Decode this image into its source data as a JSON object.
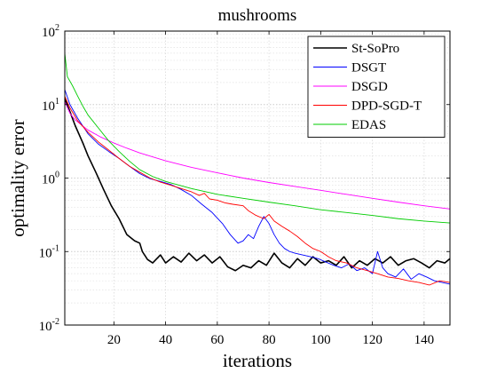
{
  "chart_data": {
    "type": "line",
    "title": "mushrooms",
    "xlabel": "iterations",
    "ylabel": "optimality error",
    "xlim": [
      1,
      150
    ],
    "ylim": [
      0.01,
      100
    ],
    "yscale": "log",
    "grid": "on (with minor log grid)",
    "legend_position": "top-right",
    "x_ticks": [
      20,
      40,
      60,
      80,
      100,
      120,
      140
    ],
    "y_ticks": [
      {
        "base": "10",
        "exp": "-2",
        "value": 0.01
      },
      {
        "base": "10",
        "exp": "-1",
        "value": 0.1
      },
      {
        "base": "10",
        "exp": "0",
        "value": 1
      },
      {
        "base": "10",
        "exp": "1",
        "value": 10
      },
      {
        "base": "10",
        "exp": "2",
        "value": 100
      }
    ],
    "series": [
      {
        "name": "St-SoPro",
        "color": "#000000",
        "points": [
          [
            1,
            12
          ],
          [
            3,
            8
          ],
          [
            5,
            5.2
          ],
          [
            8,
            3.0
          ],
          [
            10,
            2.0
          ],
          [
            13,
            1.2
          ],
          [
            16,
            0.7
          ],
          [
            19,
            0.42
          ],
          [
            22,
            0.28
          ],
          [
            25,
            0.17
          ],
          [
            28,
            0.14
          ],
          [
            30,
            0.13
          ],
          [
            31,
            0.1
          ],
          [
            33,
            0.078
          ],
          [
            35,
            0.07
          ],
          [
            38,
            0.09
          ],
          [
            40,
            0.07
          ],
          [
            43,
            0.085
          ],
          [
            46,
            0.072
          ],
          [
            49,
            0.095
          ],
          [
            52,
            0.075
          ],
          [
            55,
            0.09
          ],
          [
            58,
            0.07
          ],
          [
            61,
            0.085
          ],
          [
            64,
            0.062
          ],
          [
            67,
            0.055
          ],
          [
            70,
            0.065
          ],
          [
            73,
            0.06
          ],
          [
            76,
            0.075
          ],
          [
            79,
            0.065
          ],
          [
            82,
            0.095
          ],
          [
            85,
            0.07
          ],
          [
            88,
            0.06
          ],
          [
            91,
            0.08
          ],
          [
            94,
            0.065
          ],
          [
            97,
            0.085
          ],
          [
            100,
            0.07
          ],
          [
            103,
            0.075
          ],
          [
            106,
            0.065
          ],
          [
            109,
            0.085
          ],
          [
            112,
            0.06
          ],
          [
            115,
            0.075
          ],
          [
            118,
            0.065
          ],
          [
            121,
            0.08
          ],
          [
            124,
            0.07
          ],
          [
            127,
            0.085
          ],
          [
            130,
            0.065
          ],
          [
            133,
            0.075
          ],
          [
            136,
            0.08
          ],
          [
            139,
            0.07
          ],
          [
            142,
            0.06
          ],
          [
            145,
            0.075
          ],
          [
            148,
            0.07
          ],
          [
            150,
            0.08
          ]
        ]
      },
      {
        "name": "DSGT",
        "color": "#0000ff",
        "points": [
          [
            1,
            16
          ],
          [
            3,
            10
          ],
          [
            6,
            6.5
          ],
          [
            10,
            4.0
          ],
          [
            14,
            2.9
          ],
          [
            18,
            2.3
          ],
          [
            22,
            1.85
          ],
          [
            26,
            1.45
          ],
          [
            30,
            1.15
          ],
          [
            34,
            0.98
          ],
          [
            38,
            0.9
          ],
          [
            42,
            0.82
          ],
          [
            46,
            0.7
          ],
          [
            50,
            0.58
          ],
          [
            54,
            0.44
          ],
          [
            58,
            0.34
          ],
          [
            62,
            0.24
          ],
          [
            65,
            0.17
          ],
          [
            68,
            0.13
          ],
          [
            70,
            0.14
          ],
          [
            72,
            0.17
          ],
          [
            74,
            0.15
          ],
          [
            76,
            0.22
          ],
          [
            78,
            0.3
          ],
          [
            80,
            0.24
          ],
          [
            82,
            0.17
          ],
          [
            84,
            0.13
          ],
          [
            86,
            0.11
          ],
          [
            88,
            0.1
          ],
          [
            90,
            0.095
          ],
          [
            93,
            0.09
          ],
          [
            96,
            0.085
          ],
          [
            99,
            0.08
          ],
          [
            102,
            0.072
          ],
          [
            105,
            0.065
          ],
          [
            108,
            0.06
          ],
          [
            111,
            0.068
          ],
          [
            114,
            0.055
          ],
          [
            117,
            0.06
          ],
          [
            120,
            0.05
          ],
          [
            122,
            0.1
          ],
          [
            124,
            0.06
          ],
          [
            126,
            0.05
          ],
          [
            129,
            0.045
          ],
          [
            132,
            0.058
          ],
          [
            135,
            0.042
          ],
          [
            138,
            0.05
          ],
          [
            141,
            0.045
          ],
          [
            144,
            0.04
          ],
          [
            147,
            0.038
          ],
          [
            150,
            0.036
          ]
        ]
      },
      {
        "name": "DSGD",
        "color": "#ff00ff",
        "points": [
          [
            1,
            11
          ],
          [
            3,
            7.6
          ],
          [
            5,
            6.2
          ],
          [
            8,
            5.1
          ],
          [
            10,
            4.5
          ],
          [
            15,
            3.6
          ],
          [
            20,
            3.0
          ],
          [
            25,
            2.55
          ],
          [
            30,
            2.2
          ],
          [
            40,
            1.72
          ],
          [
            50,
            1.4
          ],
          [
            60,
            1.18
          ],
          [
            70,
            1.0
          ],
          [
            80,
            0.87
          ],
          [
            90,
            0.77
          ],
          [
            100,
            0.68
          ],
          [
            110,
            0.6
          ],
          [
            120,
            0.53
          ],
          [
            130,
            0.47
          ],
          [
            140,
            0.42
          ],
          [
            150,
            0.38
          ]
        ]
      },
      {
        "name": "DPD-SGD-T",
        "color": "#ff0000",
        "points": [
          [
            1,
            13
          ],
          [
            3,
            9
          ],
          [
            6,
            6
          ],
          [
            10,
            4.2
          ],
          [
            14,
            3.1
          ],
          [
            18,
            2.4
          ],
          [
            22,
            1.85
          ],
          [
            26,
            1.45
          ],
          [
            30,
            1.2
          ],
          [
            34,
            1.0
          ],
          [
            38,
            0.88
          ],
          [
            42,
            0.8
          ],
          [
            46,
            0.72
          ],
          [
            50,
            0.65
          ],
          [
            53,
            0.58
          ],
          [
            55,
            0.62
          ],
          [
            57,
            0.52
          ],
          [
            60,
            0.5
          ],
          [
            63,
            0.46
          ],
          [
            66,
            0.44
          ],
          [
            70,
            0.42
          ],
          [
            72,
            0.36
          ],
          [
            75,
            0.31
          ],
          [
            78,
            0.28
          ],
          [
            80,
            0.32
          ],
          [
            82,
            0.26
          ],
          [
            85,
            0.22
          ],
          [
            88,
            0.19
          ],
          [
            91,
            0.16
          ],
          [
            94,
            0.13
          ],
          [
            97,
            0.11
          ],
          [
            100,
            0.1
          ],
          [
            103,
            0.085
          ],
          [
            106,
            0.075
          ],
          [
            110,
            0.07
          ],
          [
            114,
            0.06
          ],
          [
            118,
            0.055
          ],
          [
            122,
            0.05
          ],
          [
            126,
            0.045
          ],
          [
            130,
            0.043
          ],
          [
            134,
            0.04
          ],
          [
            138,
            0.038
          ],
          [
            142,
            0.035
          ],
          [
            146,
            0.04
          ],
          [
            150,
            0.038
          ]
        ]
      },
      {
        "name": "EDAS",
        "color": "#00cc00",
        "points": [
          [
            1,
            50
          ],
          [
            2,
            24
          ],
          [
            4,
            18
          ],
          [
            6,
            13
          ],
          [
            8,
            9.5
          ],
          [
            10,
            7.2
          ],
          [
            14,
            4.8
          ],
          [
            18,
            3.2
          ],
          [
            22,
            2.3
          ],
          [
            26,
            1.7
          ],
          [
            30,
            1.3
          ],
          [
            35,
            1.05
          ],
          [
            40,
            0.9
          ],
          [
            50,
            0.72
          ],
          [
            60,
            0.6
          ],
          [
            70,
            0.53
          ],
          [
            80,
            0.47
          ],
          [
            90,
            0.42
          ],
          [
            100,
            0.37
          ],
          [
            110,
            0.34
          ],
          [
            120,
            0.31
          ],
          [
            130,
            0.28
          ],
          [
            140,
            0.26
          ],
          [
            150,
            0.245
          ]
        ]
      }
    ]
  }
}
